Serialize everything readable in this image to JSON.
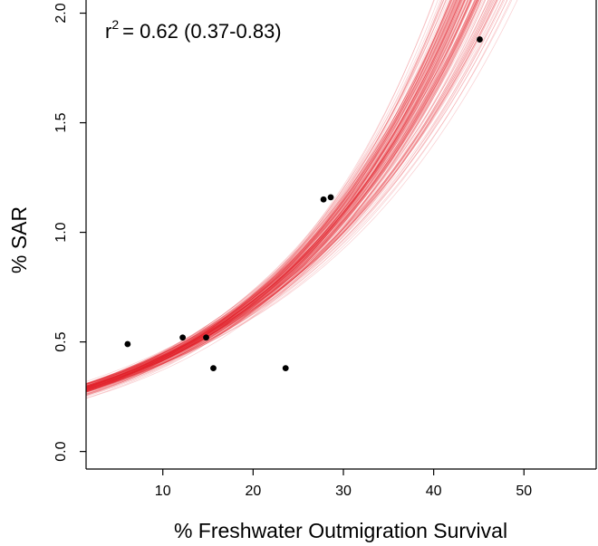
{
  "chart_data": {
    "type": "scatter",
    "annotation": {
      "r_symbol": "r",
      "r_superscript": "2",
      "r_value": "= 0.62 (0.37-0.83)"
    },
    "xlabel": "% Freshwater Outmigration Survival",
    "ylabel": "% SAR",
    "xlim": [
      1.5,
      58
    ],
    "ylim": [
      -0.08,
      2.06
    ],
    "x_ticks": [
      10,
      20,
      30,
      40,
      50
    ],
    "x_tick_labels": [
      "10",
      "20",
      "30",
      "40",
      "50"
    ],
    "y_ticks": [
      0.0,
      0.5,
      1.0,
      1.5,
      2.0
    ],
    "y_tick_labels": [
      "0.0",
      "0.5",
      "1.0",
      "1.5",
      "2.0"
    ],
    "grid": false,
    "points": [
      {
        "x": 6.1,
        "y": 0.49
      },
      {
        "x": 12.2,
        "y": 0.52
      },
      {
        "x": 14.8,
        "y": 0.52
      },
      {
        "x": 15.6,
        "y": 0.38
      },
      {
        "x": 23.6,
        "y": 0.38
      },
      {
        "x": 27.8,
        "y": 1.15
      },
      {
        "x": 28.6,
        "y": 1.16
      },
      {
        "x": 45.1,
        "y": 1.88
      }
    ],
    "fit_band": {
      "model": "exponential",
      "intercept_center": 0.285,
      "growth_center": 0.0465,
      "growth_range": [
        0.039,
        0.056
      ],
      "n_curves": 160
    },
    "colors": {
      "curves": "#e3202a",
      "points": "#000000",
      "axis": "#000000"
    }
  }
}
